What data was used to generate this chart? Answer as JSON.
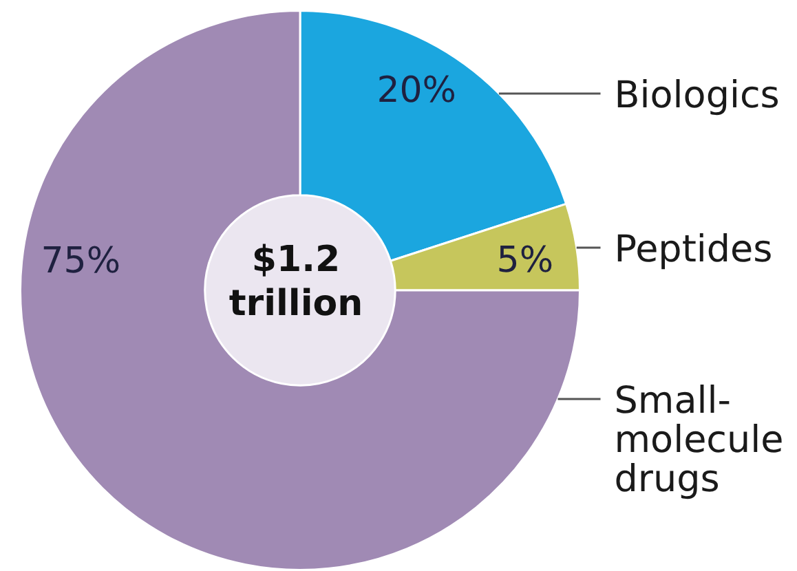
{
  "chart_data": {
    "type": "donut",
    "categories": [
      "Biologics",
      "Peptides",
      "Small-molecule drugs"
    ],
    "values": [
      20,
      5,
      75
    ],
    "colors": [
      "#1ba6df",
      "#c6c65c",
      "#a08ab4"
    ],
    "value_labels": [
      "20%",
      "5%",
      "75%"
    ],
    "annotations": [
      "$1.2 trillion"
    ],
    "legend": false
  }
}
